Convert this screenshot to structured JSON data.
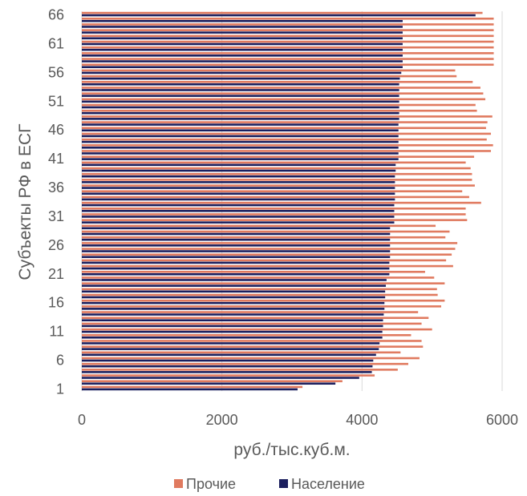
{
  "chart_data": {
    "type": "bar",
    "orientation": "horizontal",
    "xlabel": "руб./тыс.куб.м.",
    "ylabel": "Субъекты РФ в ЕСГ",
    "xlim": [
      0,
      6000
    ],
    "x_ticks": [
      "0",
      "2000",
      "4000",
      "6000"
    ],
    "y_tick_labels": [
      "1",
      "6",
      "11",
      "16",
      "21",
      "26",
      "31",
      "36",
      "41",
      "46",
      "51",
      "56",
      "61",
      "66"
    ],
    "categories": [
      "1",
      "2",
      "3",
      "4",
      "5",
      "6",
      "7",
      "8",
      "9",
      "10",
      "11",
      "12",
      "13",
      "14",
      "15",
      "16",
      "17",
      "18",
      "19",
      "20",
      "21",
      "22",
      "23",
      "24",
      "25",
      "26",
      "27",
      "28",
      "29",
      "30",
      "31",
      "32",
      "33",
      "34",
      "35",
      "36",
      "37",
      "38",
      "39",
      "40",
      "41",
      "42",
      "43",
      "44",
      "45",
      "46",
      "47",
      "48",
      "49",
      "50",
      "51",
      "52",
      "53",
      "54",
      "55",
      "56",
      "57",
      "58",
      "59",
      "60",
      "61",
      "62",
      "63",
      "64",
      "65",
      "66"
    ],
    "grid": "vertical",
    "legend_position": "bottom",
    "series": [
      {
        "name": "Прочие",
        "color": "#E07A5F",
        "values": [
          3150,
          3720,
          4180,
          4510,
          4660,
          4820,
          4550,
          4870,
          4850,
          4700,
          5000,
          4850,
          4950,
          4800,
          5130,
          5180,
          5080,
          5070,
          5180,
          5030,
          4900,
          5300,
          5200,
          5280,
          5330,
          5360,
          5190,
          5250,
          5050,
          5500,
          5480,
          5480,
          5700,
          5530,
          5430,
          5610,
          5570,
          5570,
          5550,
          5480,
          5600,
          5840,
          5870,
          5780,
          5840,
          5770,
          5790,
          5860,
          5640,
          5620,
          5760,
          5730,
          5690,
          5580,
          5350,
          5330,
          5880,
          5880,
          5880,
          5880,
          5880,
          5880,
          5880,
          5880,
          5880,
          5720
        ]
      },
      {
        "name": "Население",
        "color": "#1B1F5E",
        "values": [
          3080,
          3620,
          3960,
          4140,
          4150,
          4160,
          4200,
          4240,
          4250,
          4290,
          4290,
          4300,
          4300,
          4310,
          4320,
          4320,
          4330,
          4330,
          4340,
          4350,
          4390,
          4390,
          4390,
          4400,
          4400,
          4400,
          4400,
          4400,
          4400,
          4460,
          4460,
          4460,
          4460,
          4470,
          4470,
          4470,
          4470,
          4470,
          4480,
          4480,
          4520,
          4520,
          4520,
          4520,
          4520,
          4520,
          4520,
          4530,
          4530,
          4530,
          4530,
          4530,
          4530,
          4530,
          4540,
          4560,
          4580,
          4580,
          4580,
          4580,
          4580,
          4580,
          4580,
          4580,
          4580,
          5620
        ]
      }
    ]
  }
}
